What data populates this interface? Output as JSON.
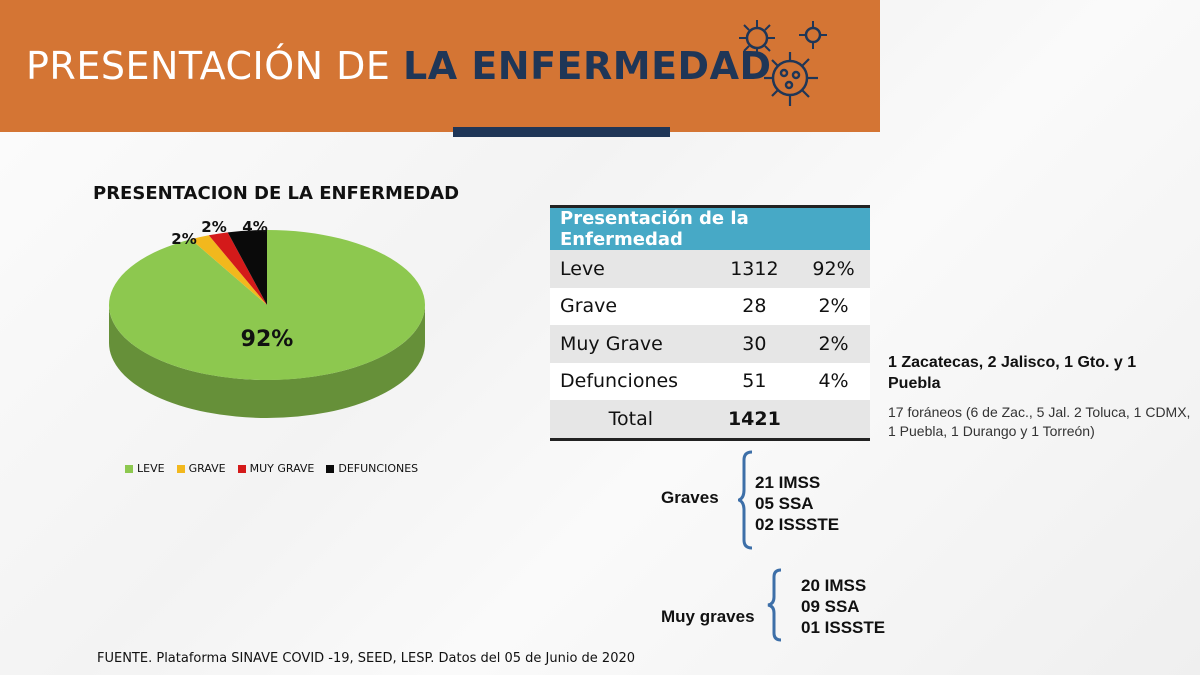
{
  "banner": {
    "title_light": "PRESENTACIÓN DE ",
    "title_bold": "LA ENFERMEDAD",
    "colors": {
      "banner": "#d47534",
      "accent": "#1f3657"
    },
    "icon": "virus-icon"
  },
  "chart_data": {
    "type": "pie",
    "title": "PRESENTACION DE LA ENFERMEDAD",
    "categories": [
      "LEVE",
      "GRAVE",
      "MUY GRAVE",
      "DEFUNCIONES"
    ],
    "values": [
      92,
      2,
      2,
      4
    ],
    "data_labels": [
      "92%",
      "2%",
      "2%",
      "4%"
    ],
    "colors": [
      "#8dc84f",
      "#f2b81d",
      "#d41a1a",
      "#0a0a0a"
    ],
    "legend_placement": "bottom"
  },
  "table": {
    "header": "Presentación de la Enfermedad",
    "rows": [
      {
        "label": "Leve",
        "count": "1312",
        "pct": "92%"
      },
      {
        "label": "Grave",
        "count": "28",
        "pct": "2%"
      },
      {
        "label": "Muy Grave",
        "count": "30",
        "pct": "2%"
      },
      {
        "label": "Defunciones",
        "count": "51",
        "pct": "4%"
      }
    ],
    "total_label": "Total",
    "total_value": "1421",
    "header_color": "#47a9c6"
  },
  "notes": {
    "main": "1 Zacatecas, 2  Jalisco, 1 Gto. y 1 Puebla",
    "foraneos": "17 foráneos (6 de Zac., 5 Jal. 2 Toluca, 1 CDMX, 1 Puebla, 1 Durango y 1 Torreón)"
  },
  "graves": {
    "label": "Graves",
    "items": [
      "21  IMSS",
      "05 SSA",
      "02 ISSSTE"
    ]
  },
  "muy_graves": {
    "label": "Muy graves",
    "items": [
      "20 IMSS",
      "09 SSA",
      "01 ISSSTE"
    ]
  },
  "source": "FUENTE. Plataforma SINAVE COVID -19, SEED, LESP. Datos del 05 de Junio de 2020"
}
